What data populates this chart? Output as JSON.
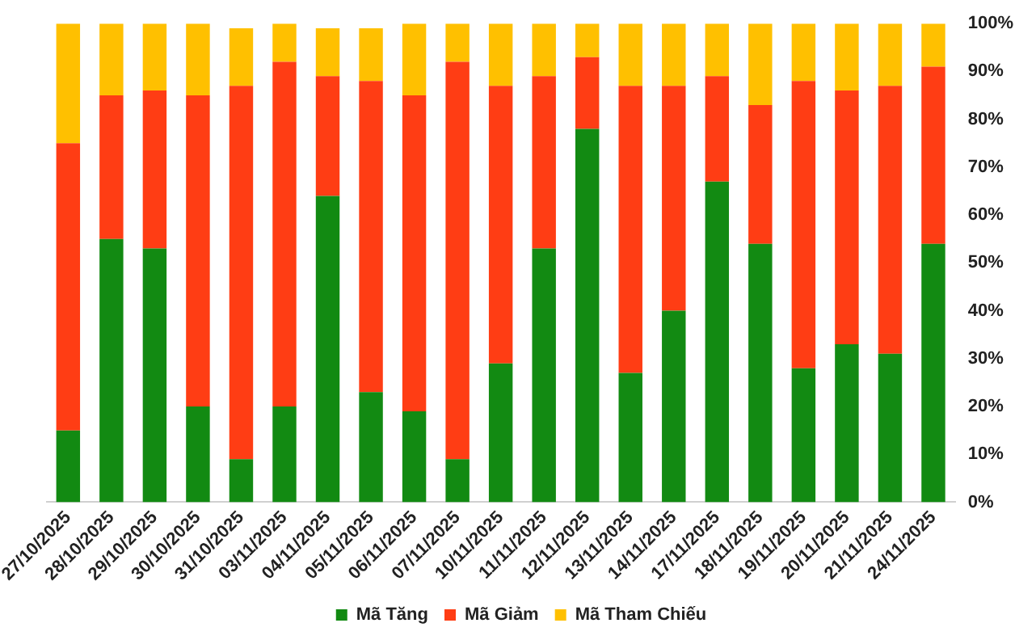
{
  "chart_data": {
    "type": "bar",
    "stacked": true,
    "categories": [
      "27/10/2025",
      "28/10/2025",
      "29/10/2025",
      "30/10/2025",
      "31/10/2025",
      "03/11/2025",
      "04/11/2025",
      "05/11/2025",
      "06/11/2025",
      "07/11/2025",
      "10/11/2025",
      "11/11/2025",
      "12/11/2025",
      "13/11/2025",
      "14/11/2025",
      "17/11/2025",
      "18/11/2025",
      "19/11/2025",
      "20/11/2025",
      "21/11/2025",
      "24/11/2025"
    ],
    "series": [
      {
        "name": "Mã Tăng",
        "color": "#128a12",
        "values": [
          15,
          55,
          53,
          20,
          9,
          20,
          64,
          23,
          19,
          9,
          29,
          53,
          78,
          27,
          40,
          67,
          54,
          28,
          33,
          31,
          54
        ]
      },
      {
        "name": "Mã Giảm",
        "color": "#ff3d14",
        "values": [
          60,
          30,
          33,
          65,
          78,
          72,
          25,
          65,
          66,
          83,
          58,
          36,
          15,
          60,
          47,
          22,
          29,
          60,
          53,
          56,
          37
        ]
      },
      {
        "name": "Mã Tham Chiếu",
        "color": "#ffc000",
        "values": [
          25,
          15,
          14,
          15,
          12,
          8,
          10,
          11,
          15,
          8,
          13,
          11,
          7,
          13,
          13,
          11,
          17,
          12,
          14,
          13,
          9
        ]
      }
    ],
    "ylim": [
      0,
      100
    ],
    "yticks": [
      {
        "value": 0,
        "label": "0%"
      },
      {
        "value": 10,
        "label": "10%"
      },
      {
        "value": 20,
        "label": "20%"
      },
      {
        "value": 30,
        "label": "30%"
      },
      {
        "value": 40,
        "label": "40%"
      },
      {
        "value": 50,
        "label": "50%"
      },
      {
        "value": 60,
        "label": "60%"
      },
      {
        "value": 70,
        "label": "70%"
      },
      {
        "value": 80,
        "label": "80%"
      },
      {
        "value": 90,
        "label": "90%"
      },
      {
        "value": 100,
        "label": "100%"
      }
    ],
    "grid": false,
    "legend": "bottom"
  }
}
